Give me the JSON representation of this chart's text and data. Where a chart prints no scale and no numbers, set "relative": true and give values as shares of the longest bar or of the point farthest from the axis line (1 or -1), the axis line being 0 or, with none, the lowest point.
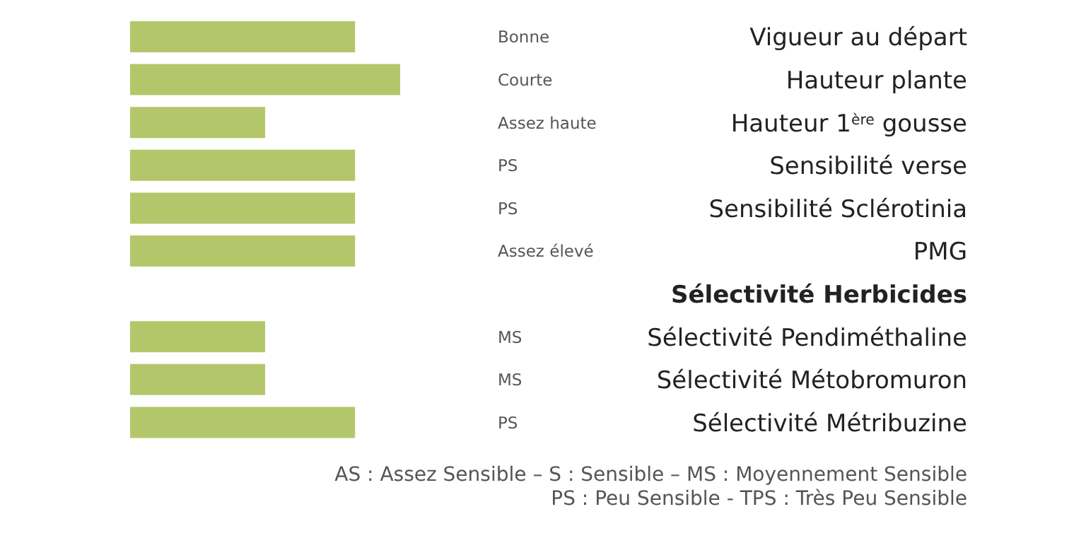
{
  "chart_data": {
    "type": "bar",
    "orientation": "horizontal",
    "relative": true,
    "categories": [
      "Vigueur au départ",
      "Hauteur plante",
      "Hauteur 1$^{ère}$ gousse",
      "Sensibilité verse",
      "Sensibilité Sclérotinia",
      "PMG",
      "Sélectivité Herbicides",
      "Sélectivité Pendiméthaline",
      "Sélectivité Métobromuron",
      "Sélectivité Métribuzine"
    ],
    "values": [
      0.833,
      1,
      0.5,
      0.833,
      0.833,
      0.833,
      null,
      0.5,
      0.5,
      0.833
    ],
    "color": "#b3c76a",
    "annotations": [
      "Bonne",
      "Courte",
      "Assez haute",
      "PS",
      "PS",
      "Assez élevé",
      "MS",
      "MS",
      "PS",
      "AS : Assez Sensible –  S : Sensible – MS : Moyennement Sensible",
      "PS : Peu Sensible - TPS : Très Peu Sensible"
    ]
  }
}
